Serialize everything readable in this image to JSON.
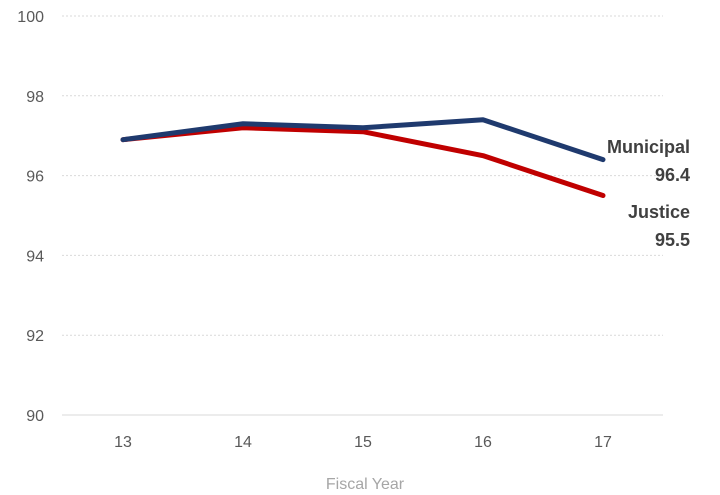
{
  "chart_data": {
    "type": "line",
    "title": "",
    "xlabel": "Fiscal Year",
    "ylabel": "",
    "x": [
      "13",
      "14",
      "15",
      "16",
      "17"
    ],
    "ylim": [
      90,
      100
    ],
    "yticks": [
      90,
      92,
      94,
      96,
      98,
      100
    ],
    "grid": true,
    "legend": "none",
    "series": [
      {
        "name": "Municipal",
        "values": [
          96.9,
          97.3,
          97.2,
          97.4,
          96.4
        ],
        "color": "#1f3a6e",
        "end_label": "96.4"
      },
      {
        "name": "Justice",
        "values": [
          96.9,
          97.2,
          97.1,
          96.5,
          95.5
        ],
        "color": "#c00000",
        "end_label": "95.5"
      }
    ],
    "colors": {
      "grid": "#d9d9d9",
      "tick_text": "#595959",
      "axis_title_text": "#a6a6a6",
      "label_text": "#404040"
    }
  }
}
